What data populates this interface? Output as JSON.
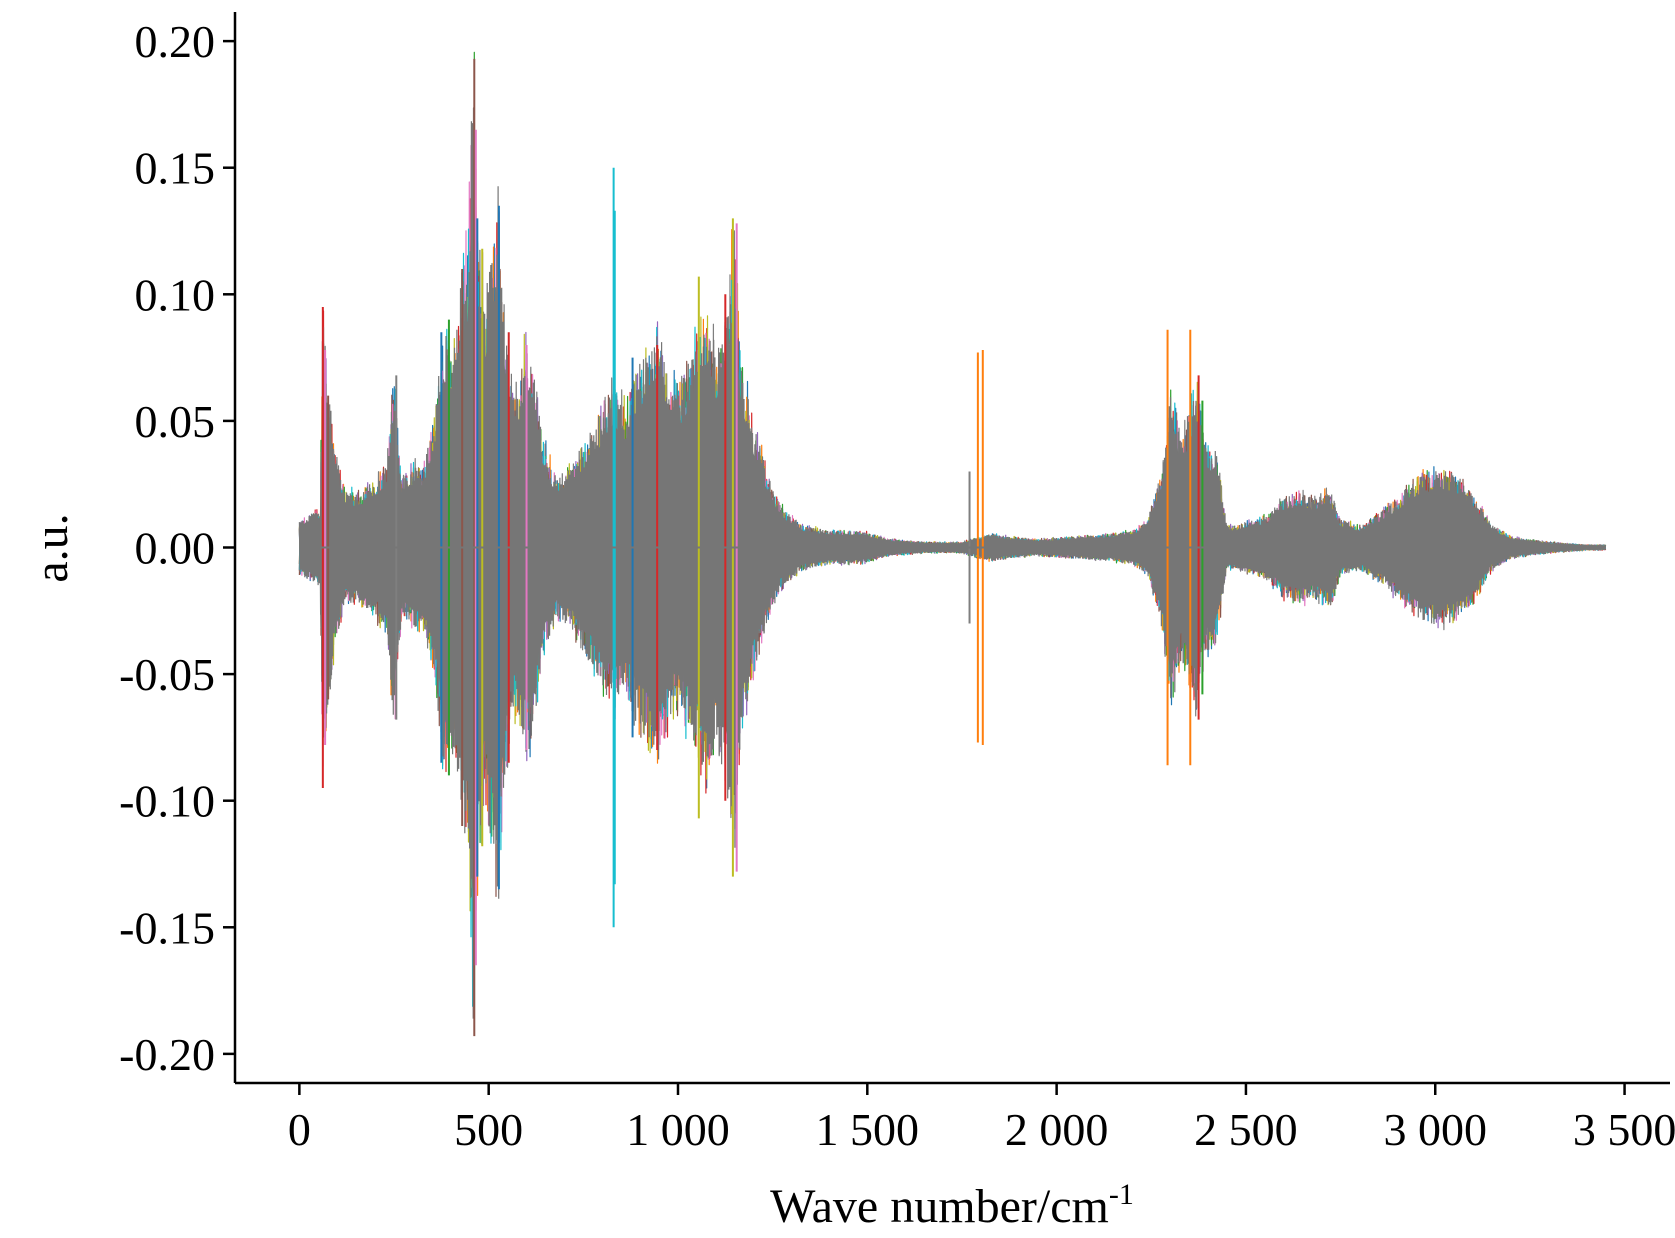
{
  "chart_data": {
    "type": "line",
    "title": "",
    "xlabel": "Wave number/cm",
    "xlabel_sup": "-1",
    "ylabel": "a.u.",
    "xlim": [
      -170,
      3620
    ],
    "ylim": [
      -0.2115,
      0.2115
    ],
    "x_ticks": [
      0,
      500,
      1000,
      1500,
      2000,
      2500,
      3000,
      3500
    ],
    "x_tick_labels": [
      "0",
      "500",
      "1 000",
      "1 500",
      "2 000",
      "2 500",
      "3 000",
      "3 500"
    ],
    "y_ticks": [
      0.2,
      0.15,
      0.1,
      0.05,
      0.0,
      -0.05,
      -0.1,
      -0.15,
      -0.2
    ],
    "y_tick_labels": [
      "0.20",
      "0.15",
      "0.10",
      "0.05",
      "0.00",
      "-0.05",
      "-0.10",
      "-0.15",
      "-0.20"
    ],
    "grid": false,
    "x_range_data": [
      0,
      3450
    ],
    "dominant_color": "#767676",
    "palette": [
      "#1f77b4",
      "#ff7f0e",
      "#2ca02c",
      "#d62728",
      "#9467bd",
      "#8c564b",
      "#e377c2",
      "#7f7f7f",
      "#bcbd22",
      "#17becf"
    ],
    "envelope": [
      [
        0,
        0.01
      ],
      [
        30,
        0.012
      ],
      [
        55,
        0.014
      ],
      [
        62,
        0.09
      ],
      [
        70,
        0.07
      ],
      [
        90,
        0.04
      ],
      [
        120,
        0.02
      ],
      [
        160,
        0.02
      ],
      [
        200,
        0.025
      ],
      [
        230,
        0.03
      ],
      [
        250,
        0.065
      ],
      [
        270,
        0.025
      ],
      [
        300,
        0.03
      ],
      [
        330,
        0.03
      ],
      [
        360,
        0.05
      ],
      [
        380,
        0.08
      ],
      [
        410,
        0.075
      ],
      [
        430,
        0.1
      ],
      [
        445,
        0.11
      ],
      [
        460,
        0.18
      ],
      [
        470,
        0.12
      ],
      [
        490,
        0.09
      ],
      [
        510,
        0.11
      ],
      [
        525,
        0.13
      ],
      [
        545,
        0.08
      ],
      [
        565,
        0.06
      ],
      [
        580,
        0.06
      ],
      [
        600,
        0.075
      ],
      [
        615,
        0.07
      ],
      [
        640,
        0.04
      ],
      [
        680,
        0.025
      ],
      [
        720,
        0.03
      ],
      [
        760,
        0.04
      ],
      [
        800,
        0.05
      ],
      [
        830,
        0.06
      ],
      [
        860,
        0.05
      ],
      [
        890,
        0.065
      ],
      [
        920,
        0.07
      ],
      [
        950,
        0.08
      ],
      [
        980,
        0.06
      ],
      [
        1010,
        0.06
      ],
      [
        1050,
        0.075
      ],
      [
        1080,
        0.09
      ],
      [
        1100,
        0.07
      ],
      [
        1130,
        0.09
      ],
      [
        1150,
        0.12
      ],
      [
        1165,
        0.07
      ],
      [
        1200,
        0.045
      ],
      [
        1230,
        0.03
      ],
      [
        1270,
        0.015
      ],
      [
        1330,
        0.008
      ],
      [
        1400,
        0.006
      ],
      [
        1480,
        0.006
      ],
      [
        1560,
        0.003
      ],
      [
        1650,
        0.002
      ],
      [
        1750,
        0.002
      ],
      [
        1800,
        0.004
      ],
      [
        1830,
        0.005
      ],
      [
        1870,
        0.004
      ],
      [
        1950,
        0.003
      ],
      [
        2050,
        0.004
      ],
      [
        2150,
        0.005
      ],
      [
        2200,
        0.006
      ],
      [
        2240,
        0.01
      ],
      [
        2280,
        0.03
      ],
      [
        2300,
        0.06
      ],
      [
        2330,
        0.04
      ],
      [
        2370,
        0.06
      ],
      [
        2390,
        0.04
      ],
      [
        2420,
        0.035
      ],
      [
        2450,
        0.008
      ],
      [
        2480,
        0.008
      ],
      [
        2520,
        0.01
      ],
      [
        2560,
        0.012
      ],
      [
        2600,
        0.018
      ],
      [
        2640,
        0.02
      ],
      [
        2680,
        0.018
      ],
      [
        2720,
        0.022
      ],
      [
        2750,
        0.01
      ],
      [
        2800,
        0.008
      ],
      [
        2850,
        0.012
      ],
      [
        2900,
        0.018
      ],
      [
        2950,
        0.025
      ],
      [
        3000,
        0.028
      ],
      [
        3050,
        0.027
      ],
      [
        3100,
        0.02
      ],
      [
        3150,
        0.008
      ],
      [
        3200,
        0.004
      ],
      [
        3300,
        0.002
      ],
      [
        3400,
        0.001
      ],
      [
        3450,
        0.001
      ]
    ],
    "spikes": [
      {
        "x": 62,
        "y": 0.095,
        "color": "#d62728"
      },
      {
        "x": 68,
        "y": 0.078,
        "color": "#e377c2"
      },
      {
        "x": 76,
        "y": 0.06,
        "color": "#8c564b"
      },
      {
        "x": 256,
        "y": 0.068,
        "color": "#7f7f7f"
      },
      {
        "x": 375,
        "y": 0.085,
        "color": "#1f77b4"
      },
      {
        "x": 395,
        "y": 0.09,
        "color": "#2ca02c"
      },
      {
        "x": 430,
        "y": 0.11,
        "color": "#8c564b"
      },
      {
        "x": 462,
        "y": 0.193,
        "color": "#8c564b"
      },
      {
        "x": 466,
        "y": 0.165,
        "color": "#e377c2"
      },
      {
        "x": 470,
        "y": 0.13,
        "color": "#1f77b4"
      },
      {
        "x": 483,
        "y": 0.118,
        "color": "#bcbd22"
      },
      {
        "x": 527,
        "y": 0.135,
        "color": "#1f77b4"
      },
      {
        "x": 553,
        "y": 0.085,
        "color": "#d62728"
      },
      {
        "x": 600,
        "y": 0.08,
        "color": "#e377c2"
      },
      {
        "x": 830,
        "y": 0.15,
        "color": "#17becf"
      },
      {
        "x": 833,
        "y": 0.133,
        "color": "#17becf"
      },
      {
        "x": 880,
        "y": 0.075,
        "color": "#1f77b4"
      },
      {
        "x": 945,
        "y": 0.08,
        "color": "#d62728"
      },
      {
        "x": 1055,
        "y": 0.107,
        "color": "#bcbd22"
      },
      {
        "x": 1125,
        "y": 0.1,
        "color": "#d62728"
      },
      {
        "x": 1145,
        "y": 0.13,
        "color": "#bcbd22"
      },
      {
        "x": 1155,
        "y": 0.128,
        "color": "#e377c2"
      },
      {
        "x": 1770,
        "y": 0.03,
        "color": "#7f7f7f"
      },
      {
        "x": 1792,
        "y": 0.077,
        "color": "#ff7f0e"
      },
      {
        "x": 1805,
        "y": 0.078,
        "color": "#ff7f0e"
      },
      {
        "x": 2293,
        "y": 0.086,
        "color": "#ff7f0e"
      },
      {
        "x": 2353,
        "y": 0.086,
        "color": "#ff7f0e"
      },
      {
        "x": 2375,
        "y": 0.068,
        "color": "#d62728"
      },
      {
        "x": 2385,
        "y": 0.058,
        "color": "#2ca02c"
      }
    ],
    "offaxis_notes": []
  }
}
